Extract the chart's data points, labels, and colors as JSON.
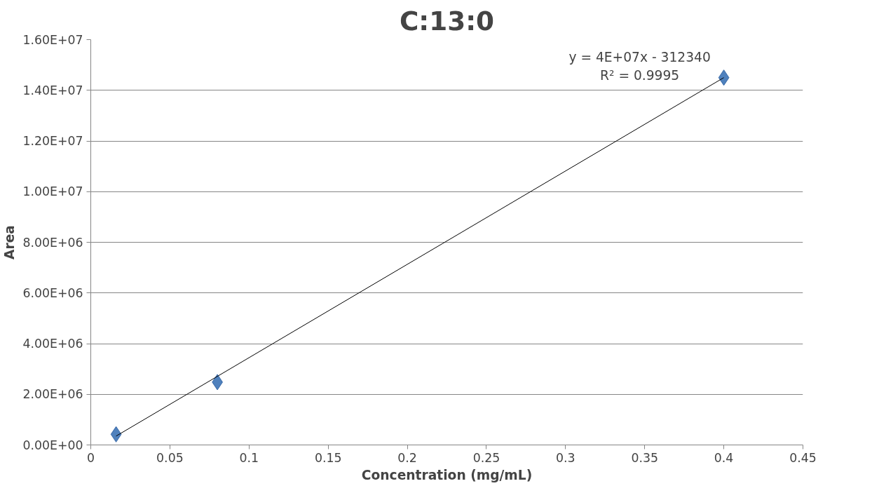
{
  "chart_data": {
    "type": "scatter",
    "title": "C:13:0",
    "xlabel": "Concentration (mg/mL)",
    "ylabel": "Area",
    "xlim": [
      0,
      0.45
    ],
    "xticks": [
      0,
      0.05,
      0.1,
      0.15,
      0.2,
      0.25,
      0.3,
      0.35,
      0.4,
      0.45
    ],
    "ylim": [
      0,
      16000000
    ],
    "yticks": [
      {
        "value": 0,
        "label": "0.00E+00"
      },
      {
        "value": 2000000,
        "label": "2.00E+06"
      },
      {
        "value": 4000000,
        "label": "4.00E+06"
      },
      {
        "value": 6000000,
        "label": "6.00E+06"
      },
      {
        "value": 8000000,
        "label": "8.00E+06"
      },
      {
        "value": 10000000,
        "label": "1.00E+07"
      },
      {
        "value": 12000000,
        "label": "1.20E+07"
      },
      {
        "value": 14000000,
        "label": "1.40E+07"
      },
      {
        "value": 16000000,
        "label": "1.60E+07"
      }
    ],
    "grid": "y",
    "marker": "diamond",
    "annotations": [
      "y = 4E+07x - 312340",
      "R² = 0.9995"
    ],
    "series": [
      {
        "color": "#4f81bd",
        "x": [
          0.016,
          0.08,
          0.4
        ],
        "values": [
          420000,
          2480000,
          14500000
        ]
      },
      {
        "type": "line",
        "color": "#000000",
        "marker": "none",
        "line_style": "solid",
        "x": [
          0.016,
          0.4
        ],
        "values": [
          350000,
          14500000
        ]
      }
    ]
  }
}
